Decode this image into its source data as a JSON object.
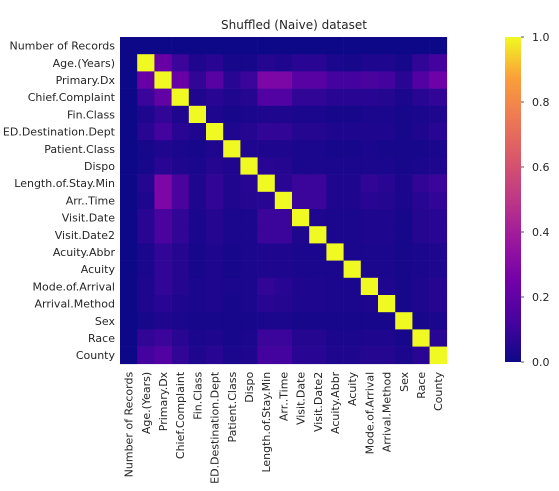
{
  "chart_data": {
    "type": "heatmap",
    "title": "Shuffled (Naive) dataset",
    "variables": [
      "Number of Records",
      "Age.(Years)",
      "Primary.Dx",
      "Chief.Complaint",
      "Fin.Class",
      "ED.Destination.Dept",
      "Patient.Class",
      "Dispo",
      "Length.of.Stay.Min",
      "Arr..Time",
      "Visit.Date",
      "Visit.Date2",
      "Acuity.Abbr",
      "Acuity",
      "Mode.of.Arrival",
      "Arrival.Method",
      "Sex",
      "Race",
      "County"
    ],
    "values": [
      [
        0.0,
        0.0,
        0.0,
        0.0,
        0.0,
        0.0,
        0.0,
        0.0,
        0.0,
        0.0,
        0.0,
        0.0,
        0.0,
        0.0,
        0.0,
        0.0,
        0.0,
        0.0,
        0.0
      ],
      [
        0.0,
        1.0,
        0.22,
        0.1,
        0.04,
        0.06,
        0.02,
        0.02,
        0.05,
        0.04,
        0.06,
        0.06,
        0.03,
        0.02,
        0.04,
        0.04,
        0.02,
        0.08,
        0.12
      ],
      [
        0.0,
        0.22,
        1.0,
        0.22,
        0.08,
        0.18,
        0.06,
        0.1,
        0.28,
        0.28,
        0.18,
        0.18,
        0.12,
        0.12,
        0.14,
        0.12,
        0.06,
        0.16,
        0.24
      ],
      [
        0.0,
        0.1,
        0.2,
        1.0,
        0.04,
        0.06,
        0.04,
        0.05,
        0.16,
        0.16,
        0.08,
        0.08,
        0.06,
        0.06,
        0.06,
        0.05,
        0.03,
        0.06,
        0.08
      ],
      [
        0.0,
        0.04,
        0.08,
        0.04,
        1.0,
        0.04,
        0.02,
        0.03,
        0.04,
        0.04,
        0.03,
        0.03,
        0.02,
        0.02,
        0.03,
        0.03,
        0.02,
        0.03,
        0.04
      ],
      [
        0.0,
        0.06,
        0.12,
        0.06,
        0.04,
        1.0,
        0.04,
        0.05,
        0.08,
        0.08,
        0.05,
        0.05,
        0.04,
        0.04,
        0.04,
        0.04,
        0.02,
        0.04,
        0.06
      ],
      [
        0.0,
        0.02,
        0.04,
        0.03,
        0.02,
        0.04,
        1.0,
        0.04,
        0.04,
        0.04,
        0.03,
        0.03,
        0.02,
        0.02,
        0.03,
        0.02,
        0.02,
        0.02,
        0.03
      ],
      [
        0.0,
        0.02,
        0.06,
        0.04,
        0.03,
        0.05,
        0.04,
        1.0,
        0.06,
        0.05,
        0.03,
        0.03,
        0.03,
        0.03,
        0.03,
        0.03,
        0.02,
        0.03,
        0.04
      ],
      [
        0.0,
        0.05,
        0.28,
        0.14,
        0.04,
        0.08,
        0.04,
        0.06,
        1.0,
        0.06,
        0.1,
        0.1,
        0.04,
        0.04,
        0.08,
        0.06,
        0.03,
        0.08,
        0.1
      ],
      [
        0.0,
        0.04,
        0.28,
        0.14,
        0.04,
        0.08,
        0.04,
        0.05,
        0.06,
        1.0,
        0.1,
        0.1,
        0.04,
        0.04,
        0.06,
        0.05,
        0.03,
        0.06,
        0.08
      ],
      [
        0.0,
        0.06,
        0.14,
        0.08,
        0.03,
        0.05,
        0.03,
        0.03,
        0.1,
        0.1,
        1.0,
        0.04,
        0.03,
        0.03,
        0.04,
        0.04,
        0.02,
        0.05,
        0.06
      ],
      [
        0.0,
        0.06,
        0.14,
        0.08,
        0.03,
        0.05,
        0.03,
        0.03,
        0.1,
        0.1,
        0.04,
        1.0,
        0.03,
        0.03,
        0.04,
        0.04,
        0.02,
        0.05,
        0.06
      ],
      [
        0.0,
        0.03,
        0.08,
        0.05,
        0.02,
        0.04,
        0.02,
        0.03,
        0.04,
        0.04,
        0.03,
        0.03,
        1.0,
        0.03,
        0.03,
        0.03,
        0.02,
        0.03,
        0.04
      ],
      [
        0.0,
        0.03,
        0.08,
        0.05,
        0.02,
        0.04,
        0.02,
        0.03,
        0.04,
        0.04,
        0.03,
        0.03,
        0.03,
        1.0,
        0.03,
        0.03,
        0.02,
        0.03,
        0.04
      ],
      [
        0.0,
        0.04,
        0.08,
        0.05,
        0.03,
        0.04,
        0.03,
        0.03,
        0.08,
        0.06,
        0.04,
        0.04,
        0.03,
        0.03,
        1.0,
        0.04,
        0.02,
        0.04,
        0.05
      ],
      [
        0.0,
        0.04,
        0.06,
        0.04,
        0.03,
        0.04,
        0.02,
        0.03,
        0.06,
        0.05,
        0.04,
        0.04,
        0.03,
        0.03,
        0.04,
        1.0,
        0.02,
        0.04,
        0.05
      ],
      [
        0.0,
        0.02,
        0.04,
        0.03,
        0.02,
        0.02,
        0.02,
        0.02,
        0.03,
        0.03,
        0.02,
        0.02,
        0.02,
        0.02,
        0.02,
        0.02,
        1.0,
        0.02,
        0.03
      ],
      [
        0.0,
        0.08,
        0.1,
        0.06,
        0.03,
        0.04,
        0.02,
        0.03,
        0.1,
        0.1,
        0.05,
        0.05,
        0.03,
        0.03,
        0.04,
        0.04,
        0.02,
        1.0,
        0.06
      ],
      [
        0.0,
        0.12,
        0.16,
        0.08,
        0.04,
        0.06,
        0.03,
        0.04,
        0.12,
        0.12,
        0.06,
        0.06,
        0.04,
        0.04,
        0.05,
        0.05,
        0.03,
        0.06,
        1.0
      ]
    ],
    "colorbar": {
      "colormap": "plasma",
      "range": [
        0,
        1.0
      ],
      "ticks": [
        0.0,
        0.2,
        0.4,
        0.6,
        0.8,
        1.0
      ],
      "tick_labels": [
        "0.0",
        "0.2",
        "0.4",
        "0.6",
        "0.8",
        "1.0"
      ]
    }
  }
}
